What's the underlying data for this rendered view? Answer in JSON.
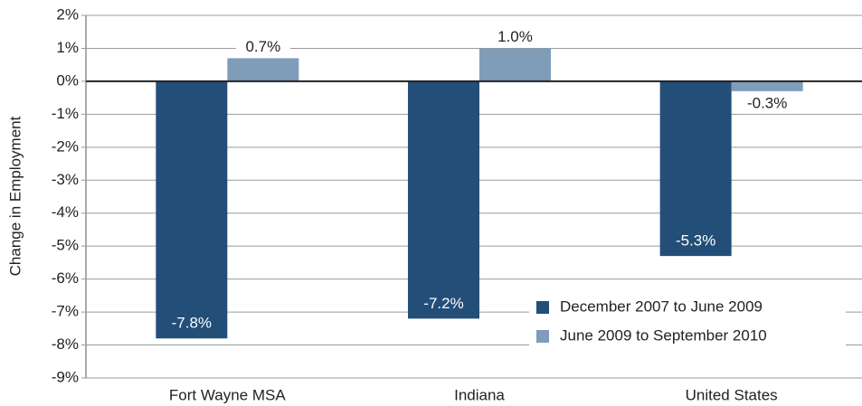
{
  "chart_data": {
    "type": "bar",
    "y_label": "Change in Employment",
    "categories": [
      "Fort Wayne MSA",
      "Indiana",
      "United States"
    ],
    "series": [
      {
        "name": "December 2007 to June 2009",
        "color": "#234e78",
        "values": [
          -7.8,
          -7.2,
          -5.3
        ],
        "value_labels": [
          "-7.8%",
          "-7.2%",
          "-5.3%"
        ]
      },
      {
        "name": "June 2009 to September 2010",
        "color": "#7f9db9",
        "values": [
          0.7,
          1.0,
          -0.3
        ],
        "value_labels": [
          "0.7%",
          "1.0%",
          "-0.3%"
        ]
      }
    ],
    "ylim": [
      -9,
      2
    ],
    "yticks": [
      {
        "value": 2,
        "label": "2%"
      },
      {
        "value": 1,
        "label": "1%"
      },
      {
        "value": 0,
        "label": "0%"
      },
      {
        "value": -1,
        "label": "-1%"
      },
      {
        "value": -2,
        "label": "-2%"
      },
      {
        "value": -3,
        "label": "-3%"
      },
      {
        "value": -4,
        "label": "-4%"
      },
      {
        "value": -5,
        "label": "-5%"
      },
      {
        "value": -6,
        "label": "-6%"
      },
      {
        "value": -7,
        "label": "-7%"
      },
      {
        "value": -8,
        "label": "-8%"
      },
      {
        "value": -9,
        "label": "-9%"
      }
    ],
    "grid": true,
    "legend": "lower right"
  }
}
